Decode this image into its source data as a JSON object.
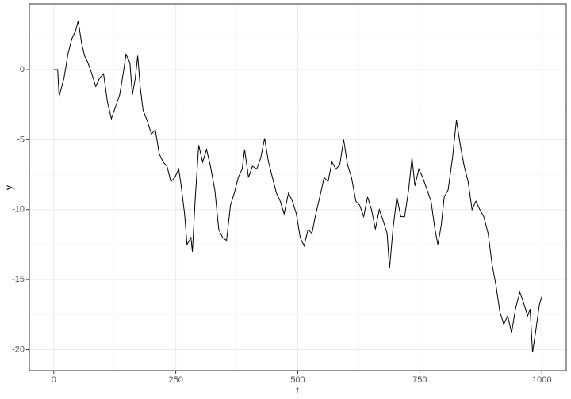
{
  "chart_data": {
    "type": "line",
    "x_label": "t",
    "y_label": "y",
    "color": "#000000",
    "x": [
      0,
      8,
      11,
      21,
      29,
      37,
      45,
      50,
      57,
      63,
      70,
      78,
      86,
      94,
      102,
      110,
      118,
      127,
      135,
      143,
      148,
      156,
      161,
      167,
      172,
      177,
      183,
      192,
      200,
      208,
      216,
      224,
      232,
      240,
      248,
      256,
      261,
      268,
      273,
      281,
      284,
      290,
      297,
      305,
      313,
      321,
      330,
      338,
      346,
      354,
      362,
      370,
      378,
      386,
      391,
      399,
      407,
      416,
      424,
      432,
      440,
      448,
      456,
      464,
      472,
      481,
      489,
      497,
      505,
      513,
      521,
      529,
      537,
      545,
      554,
      562,
      570,
      578,
      586,
      594,
      602,
      610,
      619,
      627,
      635,
      643,
      651,
      659,
      667,
      675,
      683,
      688,
      695,
      703,
      711,
      719,
      727,
      734,
      740,
      748,
      756,
      765,
      773,
      781,
      787,
      794,
      800,
      808,
      817,
      825,
      833,
      841,
      849,
      857,
      865,
      873,
      881,
      890,
      898,
      906,
      914,
      922,
      930,
      938,
      946,
      955,
      963,
      971,
      976,
      981,
      987,
      995,
      1000
    ],
    "values": [
      0,
      0,
      -1.9,
      -0.6,
      1.1,
      2.2,
      2.8,
      3.5,
      1.9,
      1.0,
      0.5,
      -0.3,
      -1.2,
      -0.6,
      -0.3,
      -2.3,
      -3.5,
      -2.6,
      -1.8,
      -0.1,
      1.1,
      0.5,
      -1.8,
      -0.6,
      1.0,
      -1.2,
      -2.9,
      -3.7,
      -4.6,
      -4.3,
      -6.0,
      -6.6,
      -6.9,
      -8.0,
      -7.7,
      -7.1,
      -8.3,
      -10.3,
      -12.5,
      -12.0,
      -13.0,
      -9.1,
      -5.4,
      -6.6,
      -5.7,
      -6.9,
      -8.6,
      -11.4,
      -12.0,
      -12.2,
      -9.7,
      -8.8,
      -7.7,
      -7.1,
      -5.7,
      -7.7,
      -6.9,
      -7.1,
      -6.3,
      -4.9,
      -6.6,
      -7.7,
      -8.8,
      -9.4,
      -10.3,
      -8.8,
      -9.4,
      -10.3,
      -12.0,
      -12.6,
      -11.4,
      -11.7,
      -10.3,
      -9.1,
      -7.7,
      -8.0,
      -6.6,
      -7.1,
      -6.8,
      -5.0,
      -6.8,
      -7.7,
      -9.4,
      -9.7,
      -10.5,
      -9.1,
      -10.0,
      -11.4,
      -10.0,
      -10.8,
      -11.7,
      -14.2,
      -11.4,
      -9.1,
      -10.5,
      -10.5,
      -8.6,
      -6.3,
      -8.3,
      -7.1,
      -7.7,
      -8.6,
      -9.4,
      -11.4,
      -12.5,
      -11.1,
      -9.1,
      -8.6,
      -6.3,
      -3.6,
      -5.4,
      -6.9,
      -8.0,
      -10.0,
      -9.4,
      -10.0,
      -10.5,
      -11.7,
      -13.9,
      -15.4,
      -17.3,
      -18.2,
      -17.6,
      -18.8,
      -17.1,
      -15.9,
      -16.7,
      -17.6,
      -17.1,
      -20.2,
      -18.8,
      -16.8,
      -16.2
    ],
    "xlim": [
      -50,
      1050
    ],
    "xticks": [
      0,
      250,
      500,
      750,
      1000
    ],
    "ylim": [
      -21.5,
      4.7
    ],
    "yticks": [
      -20,
      -15,
      -10,
      -5,
      0
    ],
    "grid": true
  }
}
